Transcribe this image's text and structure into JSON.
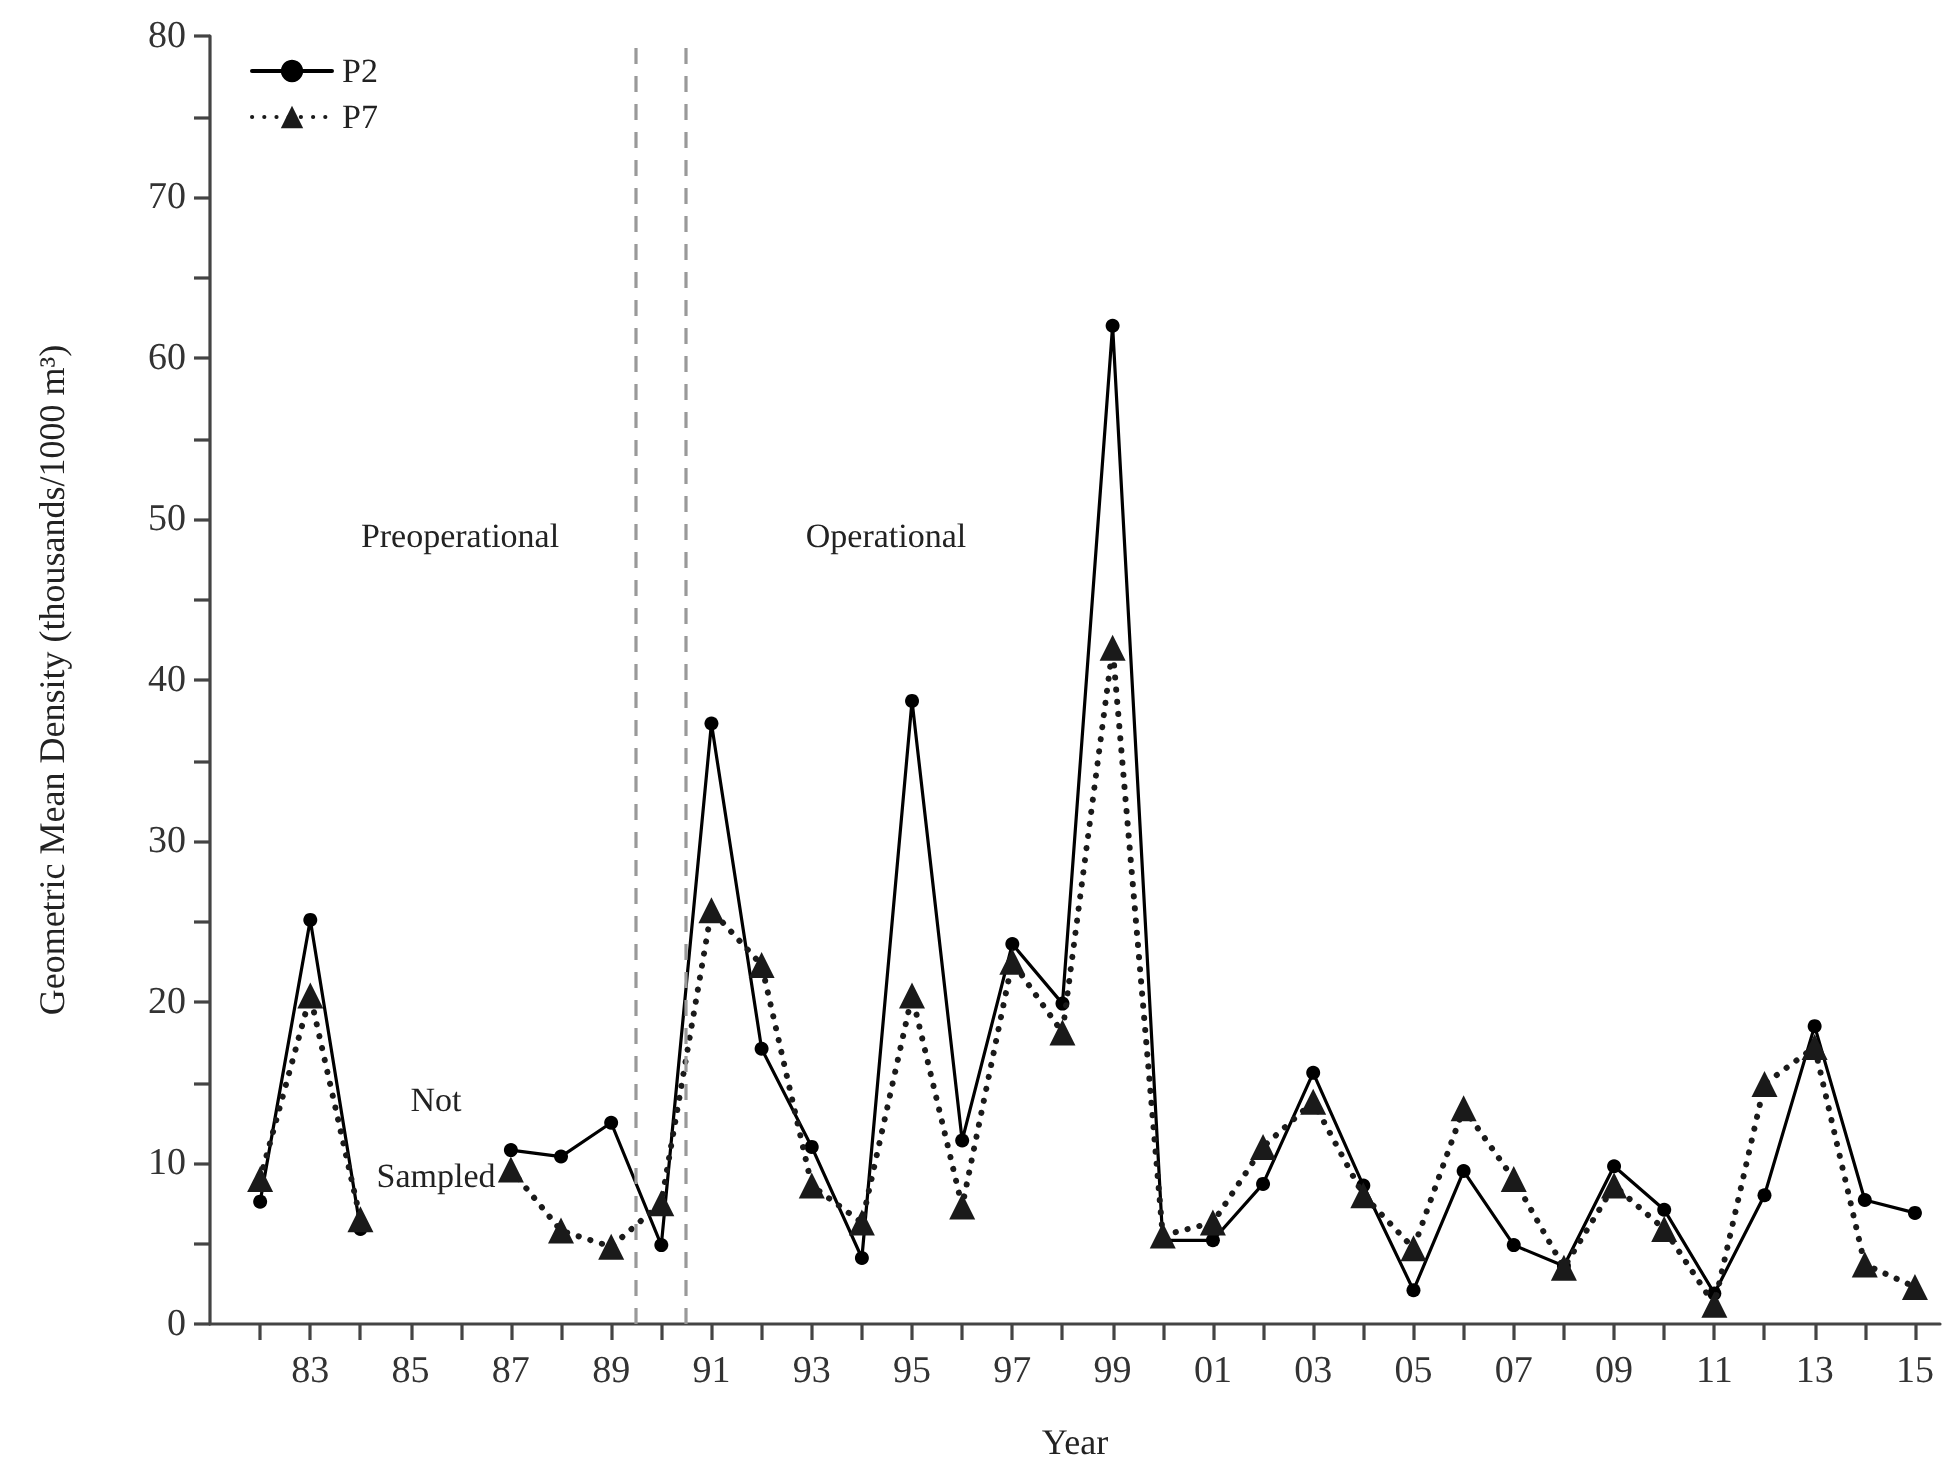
{
  "chart_data": {
    "type": "line",
    "xlabel": "Year",
    "ylabel": "Geometric Mean Density (thousands/1000 m³)",
    "x": [
      1982,
      1983,
      1984,
      1985,
      1986,
      1987,
      1988,
      1989,
      1990,
      1991,
      1992,
      1993,
      1994,
      1995,
      1996,
      1997,
      1998,
      1999,
      2000,
      2001,
      2002,
      2003,
      2004,
      2005,
      2006,
      2007,
      2008,
      2009,
      2010,
      2011,
      2012,
      2013,
      2014,
      2015
    ],
    "series": [
      {
        "name": "P2",
        "color": "#000000",
        "marker": "circle",
        "line_style": "solid",
        "values": [
          7.6,
          25.1,
          5.9,
          null,
          null,
          10.8,
          10.4,
          12.5,
          4.9,
          37.3,
          17.1,
          11.0,
          4.1,
          38.7,
          11.4,
          23.6,
          19.9,
          62.0,
          5.2,
          5.2,
          8.7,
          15.6,
          8.6,
          2.1,
          9.5,
          4.9,
          3.6,
          9.8,
          7.1,
          1.9,
          8.0,
          18.5,
          7.7,
          6.9
        ]
      },
      {
        "name": "P7",
        "color": "#1a1a1a",
        "marker": "triangle",
        "line_style": "dotted",
        "values": [
          9.0,
          20.4,
          6.5,
          null,
          null,
          9.6,
          5.8,
          4.8,
          7.5,
          25.7,
          22.3,
          8.6,
          6.3,
          20.4,
          7.3,
          22.5,
          18.1,
          42.0,
          5.5,
          6.3,
          11.0,
          13.8,
          8.0,
          4.7,
          13.4,
          9.0,
          3.5,
          8.6,
          5.9,
          1.2,
          14.9,
          17.2,
          3.7,
          2.3
        ]
      }
    ],
    "xlim": [
      1981,
      2015.5
    ],
    "xticks": [
      {
        "value": 1982,
        "label": null
      },
      {
        "value": 1983,
        "label": "83"
      },
      {
        "value": 1984,
        "label": null
      },
      {
        "value": 1985,
        "label": "85"
      },
      {
        "value": 1986,
        "label": null
      },
      {
        "value": 1987,
        "label": "87"
      },
      {
        "value": 1988,
        "label": null
      },
      {
        "value": 1989,
        "label": "89"
      },
      {
        "value": 1990,
        "label": null
      },
      {
        "value": 1991,
        "label": "91"
      },
      {
        "value": 1992,
        "label": null
      },
      {
        "value": 1993,
        "label": "93"
      },
      {
        "value": 1994,
        "label": null
      },
      {
        "value": 1995,
        "label": "95"
      },
      {
        "value": 1996,
        "label": null
      },
      {
        "value": 1997,
        "label": "97"
      },
      {
        "value": 1998,
        "label": null
      },
      {
        "value": 1999,
        "label": "99"
      },
      {
        "value": 2000,
        "label": null
      },
      {
        "value": 2001,
        "label": "01"
      },
      {
        "value": 2002,
        "label": null
      },
      {
        "value": 2003,
        "label": "03"
      },
      {
        "value": 2004,
        "label": null
      },
      {
        "value": 2005,
        "label": "05"
      },
      {
        "value": 2006,
        "label": null
      },
      {
        "value": 2007,
        "label": "07"
      },
      {
        "value": 2008,
        "label": null
      },
      {
        "value": 2009,
        "label": "09"
      },
      {
        "value": 2010,
        "label": null
      },
      {
        "value": 2011,
        "label": "11"
      },
      {
        "value": 2012,
        "label": null
      },
      {
        "value": 2013,
        "label": "13"
      },
      {
        "value": 2014,
        "label": null
      },
      {
        "value": 2015,
        "label": "15"
      }
    ],
    "ylim": [
      0,
      80
    ],
    "yticks": [
      0,
      {
        "value": 5,
        "label": null
      },
      10,
      {
        "value": 15,
        "label": null
      },
      20,
      {
        "value": 25,
        "label": null
      },
      30,
      {
        "value": 35,
        "label": null
      },
      40,
      {
        "value": 45,
        "label": null
      },
      50,
      {
        "value": 55,
        "label": null
      },
      60,
      {
        "value": 65,
        "label": null
      },
      70,
      {
        "value": 75,
        "label": null
      },
      80
    ],
    "ref_lines": [
      {
        "axis": "x",
        "value": 1989.5,
        "color": "#999999",
        "line_style": "dashed"
      },
      {
        "axis": "x",
        "value": 1990.5,
        "color": "#999999",
        "line_style": "dashed"
      }
    ],
    "annotations": [
      "Preoperational",
      "Operational",
      "Not Sampled"
    ],
    "legend": "top left",
    "grid": false
  }
}
